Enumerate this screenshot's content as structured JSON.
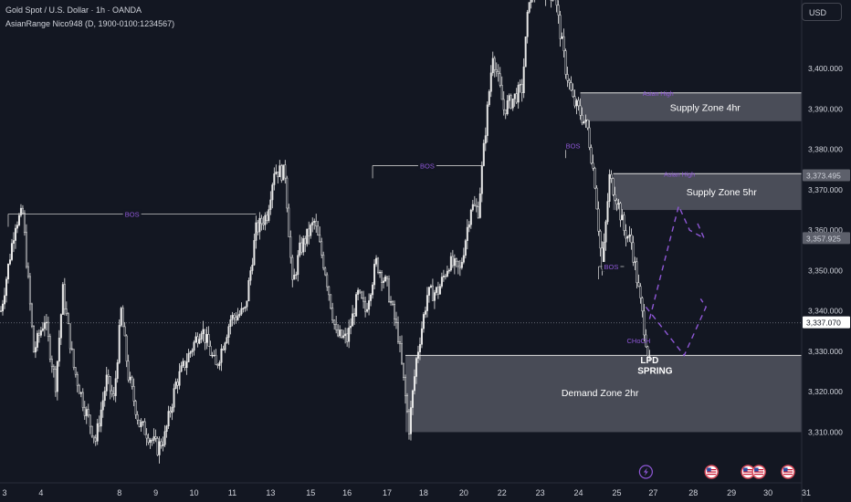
{
  "header": {
    "symbol_line": "Gold Spot / U.S. Dollar · 1h · OANDA",
    "indicator_line": "AsianRange Nico948 (D, 1900-0100:1234567)"
  },
  "currency_button": "USD",
  "colors": {
    "background": "#131722",
    "candle": "#e8e8e8",
    "zone_fill": "#5d606b",
    "accent": "#8e57d6",
    "bos_line": "#c9c9c9",
    "price_tag": "#5d606b"
  },
  "chart_data": {
    "type": "candlestick",
    "y_axis": {
      "range": [
        3304,
        3417
      ],
      "tick_labels": [
        "3,310.000",
        "3,320.000",
        "3,330.000",
        "3,340.000",
        "3,350.000",
        "3,360.000",
        "3,370.000",
        "3,380.000",
        "3,390.000",
        "3,400.000"
      ],
      "tick_values": [
        3310,
        3320,
        3330,
        3340,
        3350,
        3360,
        3370,
        3380,
        3390,
        3400
      ]
    },
    "x_axis": {
      "tick_labels": [
        "3",
        "4",
        "8",
        "9",
        "10",
        "11",
        "13",
        "15",
        "16",
        "17",
        "18",
        "20",
        "22",
        "23",
        "24",
        "25",
        "27",
        "28",
        "29",
        "30",
        "31"
      ],
      "tick_bars": [
        2,
        22,
        65,
        85,
        106,
        127,
        148,
        170,
        190,
        212,
        232,
        254,
        275,
        296,
        317,
        338,
        358,
        380,
        401,
        421,
        442
      ]
    },
    "bar_count": 440,
    "price_path": [
      [
        0,
        3340
      ],
      [
        8,
        3362
      ],
      [
        12,
        3364
      ],
      [
        18,
        3330
      ],
      [
        24,
        3338
      ],
      [
        30,
        3322
      ],
      [
        34,
        3345
      ],
      [
        40,
        3326
      ],
      [
        46,
        3316
      ],
      [
        52,
        3308
      ],
      [
        58,
        3323
      ],
      [
        62,
        3318
      ],
      [
        66,
        3340
      ],
      [
        70,
        3324
      ],
      [
        76,
        3312
      ],
      [
        80,
        3310
      ],
      [
        86,
        3306
      ],
      [
        90,
        3309
      ],
      [
        96,
        3322
      ],
      [
        104,
        3330
      ],
      [
        110,
        3336
      ],
      [
        118,
        3326
      ],
      [
        126,
        3338
      ],
      [
        134,
        3340
      ],
      [
        140,
        3360
      ],
      [
        146,
        3364
      ],
      [
        150,
        3375
      ],
      [
        156,
        3374
      ],
      [
        160,
        3346
      ],
      [
        164,
        3355
      ],
      [
        172,
        3362
      ],
      [
        178,
        3350
      ],
      [
        184,
        3334
      ],
      [
        190,
        3333
      ],
      [
        196,
        3344
      ],
      [
        200,
        3340
      ],
      [
        206,
        3352
      ],
      [
        212,
        3346
      ],
      [
        218,
        3334
      ],
      [
        224,
        3311
      ],
      [
        228,
        3328
      ],
      [
        234,
        3344
      ],
      [
        240,
        3345
      ],
      [
        246,
        3352
      ],
      [
        252,
        3350
      ],
      [
        258,
        3366
      ],
      [
        262,
        3365
      ],
      [
        266,
        3385
      ],
      [
        270,
        3404
      ],
      [
        276,
        3390
      ],
      [
        280,
        3392
      ],
      [
        286,
        3395
      ],
      [
        290,
        3418
      ],
      [
        296,
        3420
      ],
      [
        304,
        3418
      ],
      [
        310,
        3400
      ],
      [
        314,
        3392
      ],
      [
        318,
        3389
      ],
      [
        322,
        3385
      ],
      [
        326,
        3372
      ],
      [
        330,
        3350
      ],
      [
        334,
        3373
      ],
      [
        338,
        3368
      ],
      [
        342,
        3360
      ],
      [
        346,
        3357
      ],
      [
        350,
        3345
      ],
      [
        354,
        3333
      ],
      [
        356,
        3327
      ]
    ],
    "last_bar": 356,
    "current_price": 3337.07,
    "current_price_label": "3,337.070",
    "price_tags": [
      {
        "value": 3373.495,
        "label": "3,373.495"
      },
      {
        "value": 3357.925,
        "label": "3,357.925"
      }
    ],
    "zones": [
      {
        "label": "Supply Zone 4hr",
        "x0": 318,
        "x1": 440,
        "y0": 3387,
        "y1": 3394,
        "top_label": "Asian High"
      },
      {
        "label": "Supply Zone 5hr",
        "x0": 336,
        "x1": 440,
        "y0": 3365,
        "y1": 3374,
        "top_label": "Asian High"
      },
      {
        "label": "Demand Zone 2hr",
        "x0": 222,
        "x1": 440,
        "y0": 3310,
        "y1": 3329,
        "top_label": ""
      }
    ],
    "bos_lines": [
      {
        "label": "BOS",
        "x0": 4,
        "x1": 140,
        "y": 3364
      },
      {
        "label": "BOS",
        "x0": 204,
        "x1": 264,
        "y": 3376
      },
      {
        "label": "BOS",
        "x0": 310,
        "x1": 318,
        "y": 3381
      },
      {
        "label": "BOS",
        "x0": 328,
        "x1": 342,
        "y": 3351
      }
    ],
    "annotations": [
      {
        "text": "CHoCH",
        "x": 350,
        "y": 3332,
        "kind": "accent"
      },
      {
        "text": "LPD",
        "x": 356,
        "y": 3327,
        "kind": "bold"
      },
      {
        "text": "SPRING",
        "x": 359,
        "y": 3324.5,
        "kind": "bold"
      }
    ],
    "projections": [
      [
        [
          354,
          3341
        ],
        [
          375,
          3329
        ],
        [
          387,
          3341
        ],
        [
          384,
          3343
        ]
      ],
      [
        [
          356,
          3338
        ],
        [
          372,
          3366
        ],
        [
          378,
          3360
        ],
        [
          386,
          3358
        ],
        [
          382,
          3362
        ]
      ]
    ],
    "event_markers": [
      {
        "icon": "lightning-icon",
        "x": 354
      },
      {
        "icon": "us-flag-icon",
        "x": 390
      },
      {
        "icon": "us-flag-icon",
        "x": 410
      },
      {
        "icon": "us-flag-icon",
        "x": 416
      },
      {
        "icon": "us-flag-icon",
        "x": 432
      }
    ]
  }
}
